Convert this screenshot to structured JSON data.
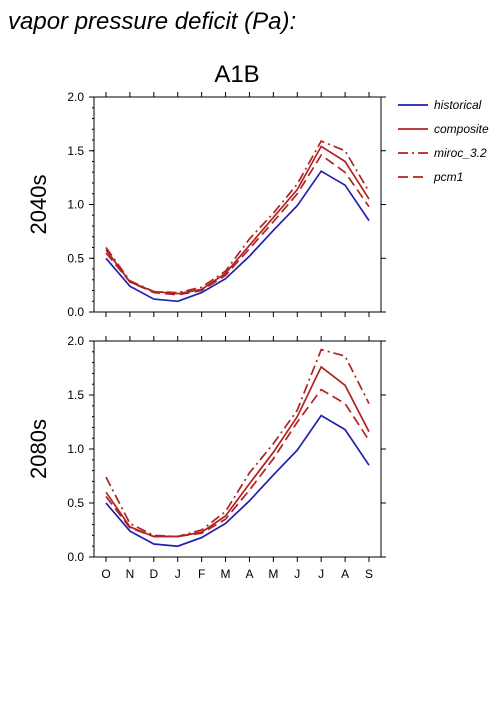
{
  "title": "vapor pressure deficit (Pa):",
  "colors": {
    "historical": "#2020b0",
    "model": "#b22222"
  },
  "chart_data": [
    {
      "type": "line",
      "title": "A1B",
      "ylabel": "2040s",
      "categories": [
        "O",
        "N",
        "D",
        "J",
        "F",
        "M",
        "A",
        "M",
        "J",
        "J",
        "A",
        "S"
      ],
      "ylim": [
        0,
        2.0
      ],
      "yticks": [
        "0.0",
        "0.5",
        "1.0",
        "1.5",
        "2.0"
      ],
      "legend_position": "right",
      "series": [
        {
          "name": "historical",
          "style": "solid",
          "color": "#2020b0",
          "values": [
            0.5,
            0.24,
            0.12,
            0.1,
            0.18,
            0.31,
            0.52,
            0.76,
            0.99,
            1.31,
            1.18,
            0.85
          ]
        },
        {
          "name": "composite",
          "style": "solid",
          "color": "#b22222",
          "values": [
            0.58,
            0.28,
            0.19,
            0.17,
            0.21,
            0.36,
            0.62,
            0.88,
            1.14,
            1.54,
            1.4,
            1.05
          ]
        },
        {
          "name": "miroc_3.2",
          "style": "dashdot",
          "color": "#b22222",
          "values": [
            0.6,
            0.29,
            0.19,
            0.18,
            0.23,
            0.38,
            0.68,
            0.92,
            1.19,
            1.59,
            1.5,
            1.12
          ]
        },
        {
          "name": "pcm1",
          "style": "dashed",
          "color": "#b22222",
          "values": [
            0.55,
            0.28,
            0.18,
            0.16,
            0.2,
            0.34,
            0.59,
            0.84,
            1.1,
            1.46,
            1.3,
            0.98
          ]
        }
      ]
    },
    {
      "type": "line",
      "title": "",
      "ylabel": "2080s",
      "categories": [
        "O",
        "N",
        "D",
        "J",
        "F",
        "M",
        "A",
        "M",
        "J",
        "J",
        "A",
        "S"
      ],
      "ylim": [
        0,
        2.0
      ],
      "yticks": [
        "0.0",
        "0.5",
        "1.0",
        "1.5",
        "2.0"
      ],
      "series": [
        {
          "name": "historical",
          "style": "solid",
          "color": "#2020b0",
          "values": [
            0.5,
            0.24,
            0.12,
            0.1,
            0.18,
            0.31,
            0.52,
            0.76,
            0.99,
            1.31,
            1.18,
            0.85
          ]
        },
        {
          "name": "composite",
          "style": "solid",
          "color": "#b22222",
          "values": [
            0.6,
            0.28,
            0.19,
            0.19,
            0.23,
            0.38,
            0.68,
            0.97,
            1.3,
            1.76,
            1.59,
            1.16
          ]
        },
        {
          "name": "miroc_3.2",
          "style": "dashdot",
          "color": "#b22222",
          "values": [
            0.74,
            0.31,
            0.2,
            0.19,
            0.25,
            0.42,
            0.78,
            1.05,
            1.36,
            1.92,
            1.86,
            1.42
          ]
        },
        {
          "name": "pcm1",
          "style": "dashed",
          "color": "#b22222",
          "values": [
            0.56,
            0.27,
            0.19,
            0.19,
            0.22,
            0.35,
            0.62,
            0.91,
            1.25,
            1.55,
            1.42,
            1.08
          ]
        }
      ]
    }
  ]
}
